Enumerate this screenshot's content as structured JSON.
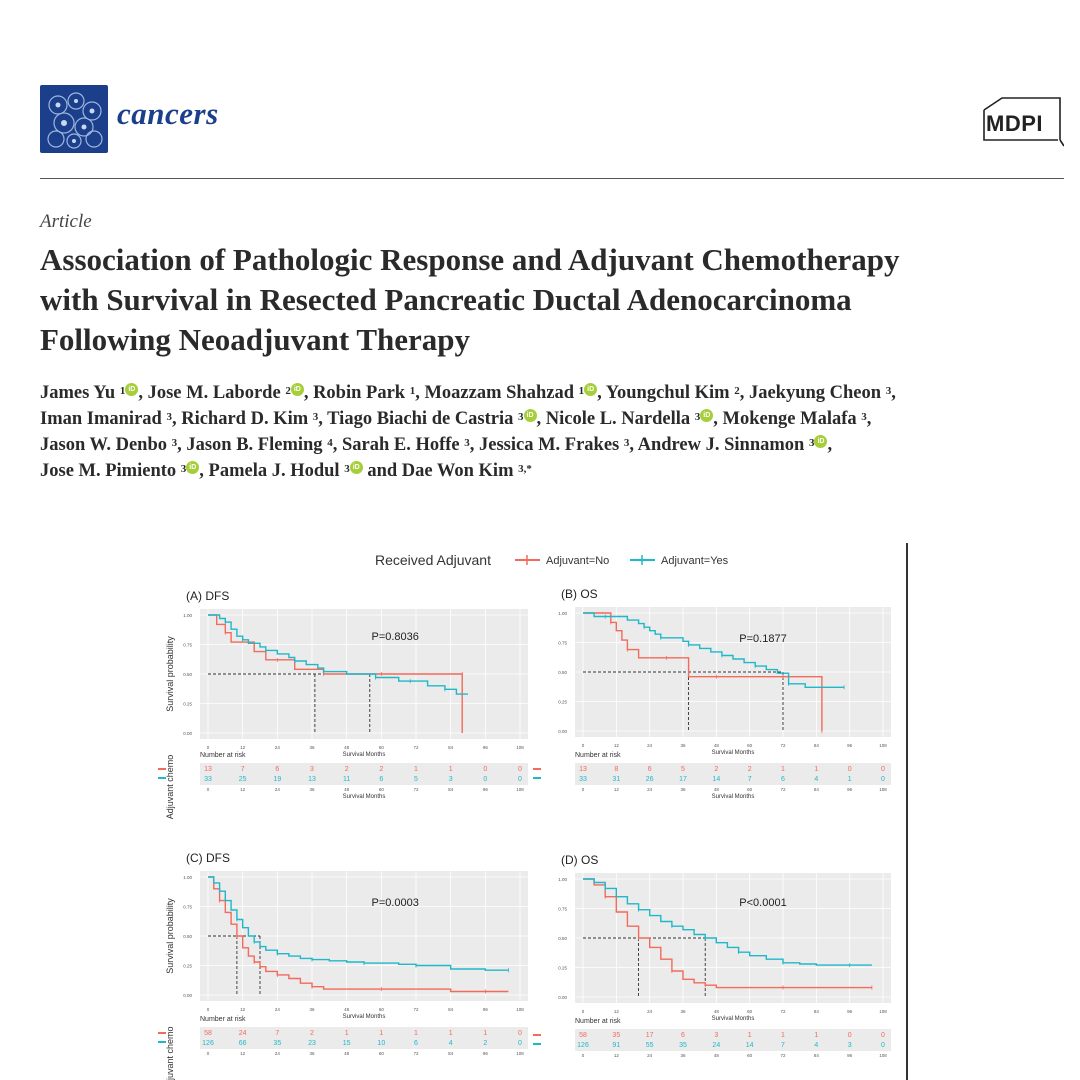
{
  "journal": {
    "name": "cancers",
    "publisher": "MDPI"
  },
  "article_type": "Article",
  "title_lines": [
    "Association of Pathologic Response and Adjuvant Chemotherapy",
    "with Survival in Resected Pancreatic Ductal Adenocarcinoma",
    "Following Neoadjuvant Therapy"
  ],
  "authors_lines": [
    [
      {
        "t": "James Yu "
      },
      {
        "s": "1"
      },
      {
        "o": 1
      },
      {
        "t": ", Jose M. Laborde "
      },
      {
        "s": "2"
      },
      {
        "o": 1
      },
      {
        "t": ", Robin Park "
      },
      {
        "s": "1"
      },
      {
        "t": ", Moazzam Shahzad "
      },
      {
        "s": "1"
      },
      {
        "o": 1
      },
      {
        "t": ", Youngchul Kim "
      },
      {
        "s": "2"
      },
      {
        "t": ", Jaekyung Cheon "
      },
      {
        "s": "3"
      },
      {
        "t": ","
      }
    ],
    [
      {
        "t": "Iman Imanirad "
      },
      {
        "s": "3"
      },
      {
        "t": ", Richard D. Kim "
      },
      {
        "s": "3"
      },
      {
        "t": ", Tiago Biachi de Castria "
      },
      {
        "s": "3"
      },
      {
        "o": 1
      },
      {
        "t": ", Nicole L. Nardella "
      },
      {
        "s": "3"
      },
      {
        "o": 1
      },
      {
        "t": ", Mokenge Malafa "
      },
      {
        "s": "3"
      },
      {
        "t": ","
      }
    ],
    [
      {
        "t": "Jason W. Denbo "
      },
      {
        "s": "3"
      },
      {
        "t": ", Jason B. Fleming "
      },
      {
        "s": "4"
      },
      {
        "t": ", Sarah E. Hoffe "
      },
      {
        "s": "3"
      },
      {
        "t": ", Jessica M. Frakes "
      },
      {
        "s": "3"
      },
      {
        "t": ", Andrew J. Sinnamon "
      },
      {
        "s": "3"
      },
      {
        "o": 1
      },
      {
        "t": ","
      }
    ],
    [
      {
        "t": "Jose M. Pimiento "
      },
      {
        "s": "3"
      },
      {
        "o": 1
      },
      {
        "t": ", Pamela J. Hodul "
      },
      {
        "s": "3"
      },
      {
        "o": 1
      },
      {
        "t": " and Dae Won Kim "
      },
      {
        "s": "3,*"
      }
    ]
  ],
  "orcid_label": "iD",
  "figure": {
    "legend_title": "Received Adjuvant",
    "legend_items": [
      {
        "label": "Adjuvant=No",
        "color": "#f26b5b"
      },
      {
        "label": "Adjuvant=Yes",
        "color": "#1fb8c9"
      }
    ],
    "y_axis_label": "Survival probability",
    "risk_axis_label_full": "Adjuvant chemo",
    "risk_axis_label_cut": "juvant chemo",
    "risk_table_title": "Number at risk",
    "x_axis_label": "Survival Months",
    "x_axis_label_cut": "Survival Months"
  },
  "chart_data": [
    {
      "type": "line",
      "title": "(A) DFS",
      "xlabel": "Survival Months",
      "ylabel": "Survival probability",
      "xlim": [
        0,
        108
      ],
      "ylim": [
        0,
        1
      ],
      "annotation": "P=0.8036",
      "xticks": [
        "0",
        "12",
        "24",
        "36",
        "48",
        "60",
        "72",
        "84",
        "96",
        "108"
      ],
      "yticks": [
        "0.00",
        "0.25",
        "0.50",
        "0.75",
        "1.00"
      ],
      "series": [
        {
          "name": "Adjuvant=No",
          "color": "#f26b5b",
          "x": [
            0,
            3,
            6,
            8,
            10,
            14,
            16,
            20,
            24,
            30,
            35,
            40,
            48,
            55,
            60,
            72,
            84,
            88,
            88
          ],
          "y": [
            1,
            0.92,
            0.85,
            0.77,
            0.77,
            0.77,
            0.69,
            0.62,
            0.62,
            0.54,
            0.54,
            0.5,
            0.5,
            0.5,
            0.5,
            0.5,
            0.5,
            0.5,
            0
          ]
        },
        {
          "name": "Adjuvant=Yes",
          "color": "#1fb8c9",
          "x": [
            0,
            4,
            6,
            8,
            10,
            12,
            14,
            18,
            20,
            24,
            28,
            30,
            34,
            38,
            40,
            48,
            55,
            58,
            60,
            66,
            70,
            76,
            78,
            82,
            86,
            90
          ],
          "y": [
            1,
            0.97,
            0.94,
            0.88,
            0.82,
            0.79,
            0.76,
            0.73,
            0.7,
            0.67,
            0.64,
            0.61,
            0.58,
            0.55,
            0.52,
            0.5,
            0.5,
            0.47,
            0.47,
            0.44,
            0.44,
            0.4,
            0.4,
            0.37,
            0.33,
            0.33
          ]
        }
      ],
      "median_lines": [
        {
          "x": 37,
          "y": 0.5
        },
        {
          "x": 56,
          "y": 0.5
        }
      ],
      "risk": {
        "No": [
          "13",
          "7",
          "6",
          "3",
          "2",
          "2",
          "1",
          "1",
          "0",
          "0"
        ],
        "Yes": [
          "33",
          "25",
          "19",
          "13",
          "11",
          "6",
          "5",
          "3",
          "0",
          "0"
        ]
      }
    },
    {
      "type": "line",
      "title": "(B) OS",
      "xlabel": "Survival Months",
      "ylabel": "Survival probability",
      "xlim": [
        0,
        108
      ],
      "ylim": [
        0,
        1
      ],
      "annotation": "P=0.1877",
      "xticks": [
        "0",
        "12",
        "24",
        "36",
        "48",
        "60",
        "72",
        "84",
        "96",
        "108"
      ],
      "yticks": [
        "0.00",
        "0.25",
        "0.50",
        "0.75",
        "1.00"
      ],
      "series": [
        {
          "name": "Adjuvant=No",
          "color": "#f26b5b",
          "x": [
            0,
            6,
            10,
            12,
            14,
            16,
            20,
            24,
            30,
            36,
            38,
            48,
            60,
            70,
            72,
            80,
            86,
            86
          ],
          "y": [
            1,
            1,
            0.92,
            0.85,
            0.77,
            0.69,
            0.62,
            0.62,
            0.62,
            0.62,
            0.46,
            0.46,
            0.46,
            0.46,
            0.46,
            0.46,
            0.46,
            0
          ]
        },
        {
          "name": "Adjuvant=Yes",
          "color": "#1fb8c9",
          "x": [
            0,
            4,
            8,
            16,
            20,
            22,
            24,
            26,
            28,
            32,
            36,
            38,
            42,
            46,
            50,
            54,
            58,
            62,
            66,
            70,
            74,
            80,
            88,
            94
          ],
          "y": [
            1,
            0.97,
            0.97,
            0.94,
            0.91,
            0.88,
            0.85,
            0.82,
            0.79,
            0.79,
            0.76,
            0.73,
            0.7,
            0.67,
            0.64,
            0.61,
            0.58,
            0.55,
            0.52,
            0.49,
            0.4,
            0.37,
            0.37,
            0.37
          ]
        }
      ],
      "median_lines": [
        {
          "x": 38,
          "y": 0.5
        },
        {
          "x": 72,
          "y": 0.5
        }
      ],
      "risk": {
        "No": [
          "13",
          "8",
          "6",
          "5",
          "2",
          "2",
          "1",
          "1",
          "0",
          "0"
        ],
        "Yes": [
          "33",
          "31",
          "26",
          "17",
          "14",
          "7",
          "6",
          "4",
          "1",
          "0"
        ]
      }
    },
    {
      "type": "line",
      "title": "(C) DFS",
      "xlabel": "Survival Months",
      "ylabel": "Survival probability",
      "xlim": [
        0,
        108
      ],
      "ylim": [
        0,
        1
      ],
      "annotation": "P=0.0003",
      "xticks": [
        "0",
        "12",
        "24",
        "36",
        "48",
        "60",
        "72",
        "84",
        "96",
        "108"
      ],
      "yticks": [
        "0.00",
        "0.25",
        "0.50",
        "0.75",
        "1.00"
      ],
      "series": [
        {
          "name": "Adjuvant=No",
          "color": "#f26b5b",
          "x": [
            0,
            2,
            4,
            6,
            8,
            10,
            12,
            14,
            16,
            18,
            20,
            24,
            28,
            32,
            36,
            40,
            48,
            60,
            72,
            84,
            96,
            104
          ],
          "y": [
            1,
            0.9,
            0.8,
            0.7,
            0.6,
            0.5,
            0.4,
            0.33,
            0.28,
            0.24,
            0.2,
            0.17,
            0.14,
            0.1,
            0.07,
            0.05,
            0.05,
            0.05,
            0.05,
            0.03,
            0.03,
            0.03
          ]
        },
        {
          "name": "Adjuvant=Yes",
          "color": "#1fb8c9",
          "x": [
            0,
            2,
            4,
            6,
            8,
            10,
            12,
            14,
            16,
            18,
            20,
            24,
            28,
            32,
            36,
            42,
            48,
            54,
            60,
            66,
            72,
            84,
            96,
            104
          ],
          "y": [
            1,
            0.95,
            0.88,
            0.8,
            0.72,
            0.64,
            0.57,
            0.5,
            0.45,
            0.41,
            0.38,
            0.35,
            0.33,
            0.31,
            0.3,
            0.29,
            0.28,
            0.27,
            0.27,
            0.26,
            0.25,
            0.22,
            0.21,
            0.21
          ]
        }
      ],
      "median_lines": [
        {
          "x": 10,
          "y": 0.5
        },
        {
          "x": 18,
          "y": 0.5
        }
      ],
      "risk": {
        "No": [
          "58",
          "24",
          "7",
          "2",
          "1",
          "1",
          "1",
          "1",
          "1",
          "0"
        ],
        "Yes": [
          "126",
          "66",
          "35",
          "23",
          "15",
          "10",
          "6",
          "4",
          "2",
          "0"
        ]
      }
    },
    {
      "type": "line",
      "title": "(D) OS",
      "xlabel": "Survival Months",
      "ylabel": "Survival probability",
      "xlim": [
        0,
        108
      ],
      "ylim": [
        0,
        1
      ],
      "annotation": "P<0.0001",
      "xticks": [
        "0",
        "12",
        "24",
        "36",
        "48",
        "60",
        "72",
        "84",
        "96",
        "108"
      ],
      "yticks": [
        "0.00",
        "0.25",
        "0.50",
        "0.75",
        "1.00"
      ],
      "series": [
        {
          "name": "Adjuvant=No",
          "color": "#f26b5b",
          "x": [
            0,
            4,
            8,
            12,
            16,
            20,
            24,
            28,
            32,
            36,
            40,
            44,
            48,
            60,
            72,
            84,
            96,
            104
          ],
          "y": [
            1,
            0.95,
            0.85,
            0.72,
            0.6,
            0.5,
            0.42,
            0.32,
            0.22,
            0.15,
            0.12,
            0.1,
            0.08,
            0.08,
            0.08,
            0.08,
            0.08,
            0.08
          ]
        },
        {
          "name": "Adjuvant=Yes",
          "color": "#1fb8c9",
          "x": [
            0,
            4,
            8,
            12,
            16,
            20,
            24,
            28,
            32,
            36,
            40,
            44,
            48,
            52,
            56,
            60,
            66,
            72,
            78,
            84,
            96,
            104
          ],
          "y": [
            1,
            0.97,
            0.92,
            0.85,
            0.79,
            0.74,
            0.69,
            0.64,
            0.6,
            0.57,
            0.53,
            0.5,
            0.46,
            0.42,
            0.38,
            0.35,
            0.32,
            0.29,
            0.28,
            0.27,
            0.27,
            0.27
          ]
        }
      ],
      "median_lines": [
        {
          "x": 20,
          "y": 0.5
        },
        {
          "x": 44,
          "y": 0.5
        }
      ],
      "risk": {
        "No": [
          "58",
          "35",
          "17",
          "6",
          "3",
          "1",
          "1",
          "1",
          "0",
          "0"
        ],
        "Yes": [
          "126",
          "91",
          "55",
          "35",
          "24",
          "14",
          "7",
          "4",
          "3",
          "0"
        ]
      }
    }
  ]
}
